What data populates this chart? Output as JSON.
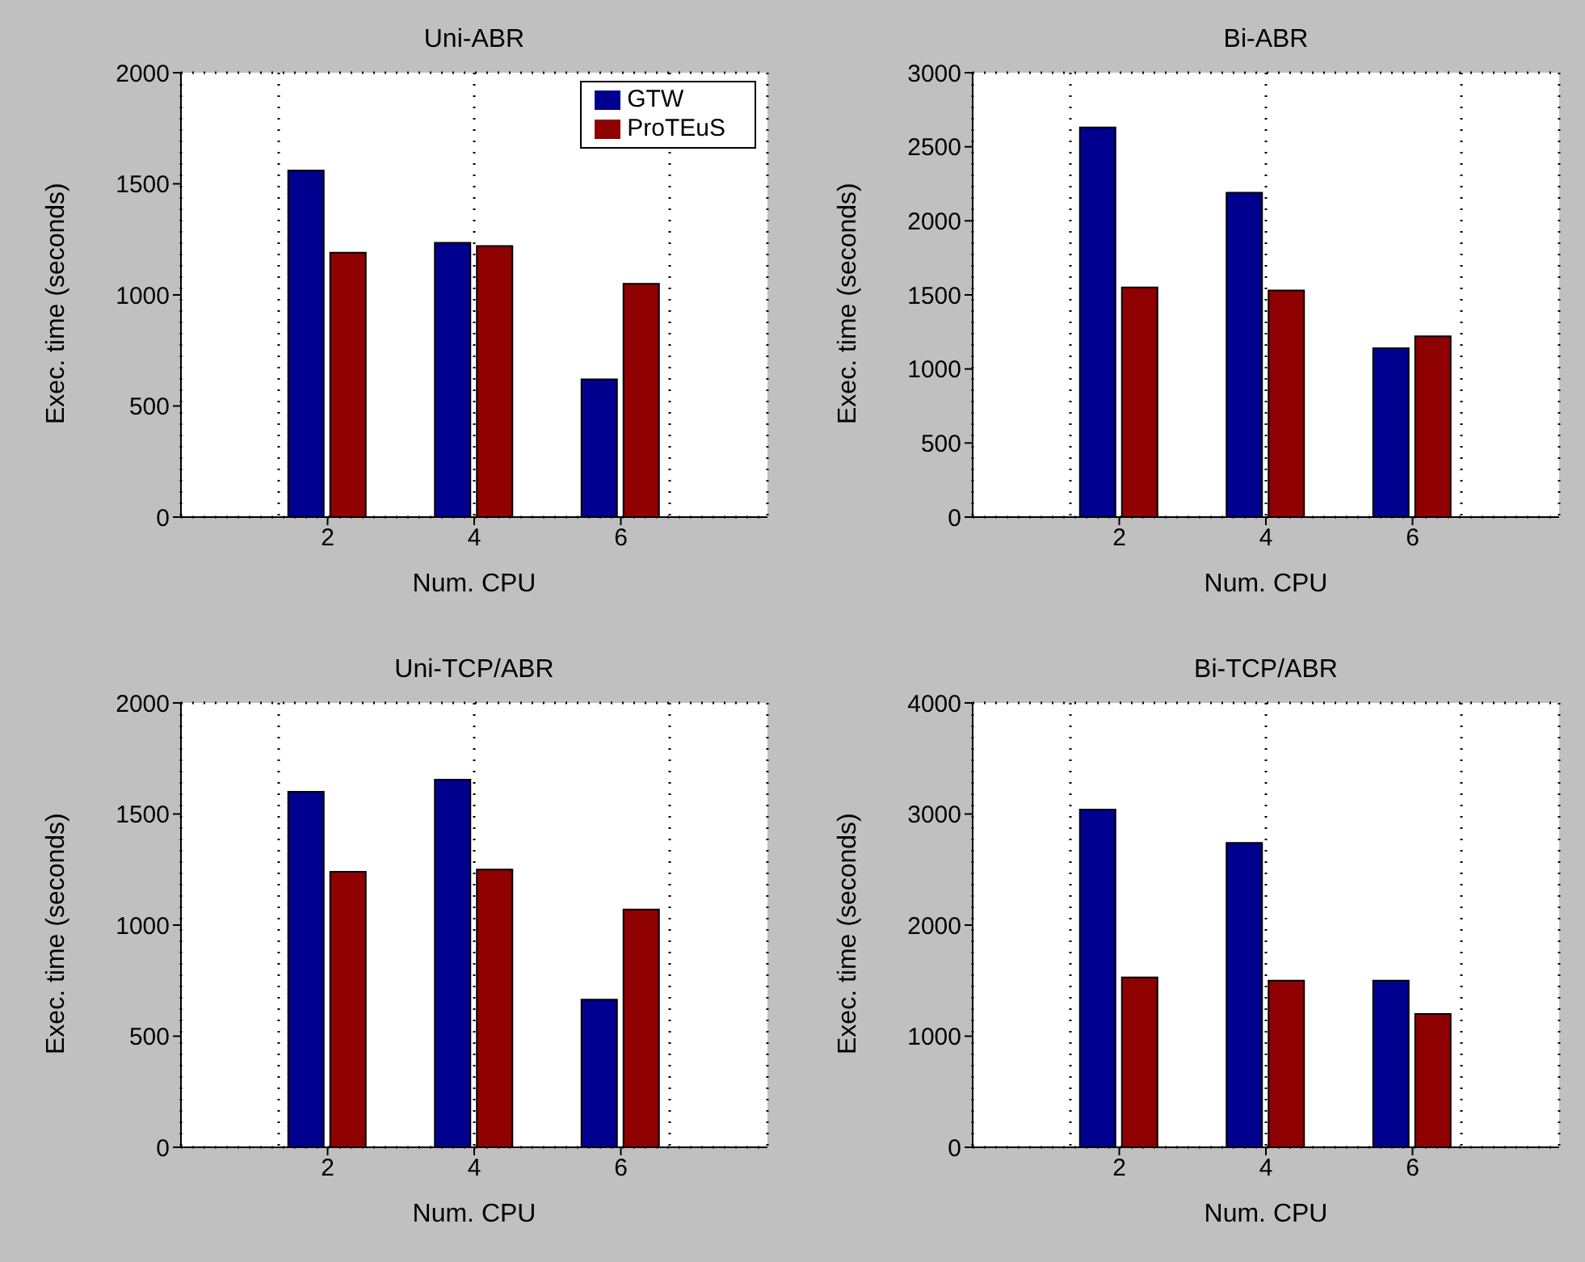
{
  "chart_data": [
    {
      "type": "bar",
      "title": "Uni-ABR",
      "xlabel": "Num. CPU",
      "ylabel": "Exec. time (seconds)",
      "x": [
        2,
        4,
        6
      ],
      "xlim": [
        0,
        8
      ],
      "xticks": [
        2,
        4,
        6
      ],
      "ylim": [
        0,
        2000
      ],
      "yticks": [
        0,
        500,
        1000,
        1500,
        2000
      ],
      "grid": true,
      "legend": "top right",
      "series": [
        {
          "name": "GTW",
          "color": "#00008f",
          "values": [
            1560,
            1235,
            620
          ]
        },
        {
          "name": "ProTEuS",
          "color": "#8f0000",
          "values": [
            1190,
            1220,
            1050
          ]
        }
      ]
    },
    {
      "type": "bar",
      "title": "Bi-ABR",
      "xlabel": "Num. CPU",
      "ylabel": "Exec. time (seconds)",
      "x": [
        2,
        4,
        6
      ],
      "xlim": [
        0,
        8
      ],
      "xticks": [
        2,
        4,
        6
      ],
      "ylim": [
        0,
        3000
      ],
      "yticks": [
        0,
        500,
        1000,
        1500,
        2000,
        2500,
        3000
      ],
      "grid": true,
      "series": [
        {
          "color": "#00008f",
          "values": [
            2630,
            2190,
            1140
          ]
        },
        {
          "color": "#8f0000",
          "values": [
            1550,
            1530,
            1220
          ]
        }
      ]
    },
    {
      "type": "bar",
      "title": "Uni-TCP/ABR",
      "xlabel": "Num. CPU",
      "ylabel": "Exec. time (seconds)",
      "x": [
        2,
        4,
        6
      ],
      "xlim": [
        0,
        8
      ],
      "xticks": [
        2,
        4,
        6
      ],
      "ylim": [
        0,
        2000
      ],
      "yticks": [
        0,
        500,
        1000,
        1500,
        2000
      ],
      "grid": true,
      "series": [
        {
          "color": "#00008f",
          "values": [
            1600,
            1655,
            665
          ]
        },
        {
          "color": "#8f0000",
          "values": [
            1240,
            1250,
            1070
          ]
        }
      ]
    },
    {
      "type": "bar",
      "title": "Bi-TCP/ABR",
      "xlabel": "Num. CPU",
      "ylabel": "Exec. time (seconds)",
      "x": [
        2,
        4,
        6
      ],
      "xlim": [
        0,
        8
      ],
      "xticks": [
        2,
        4,
        6
      ],
      "ylim": [
        0,
        4000
      ],
      "yticks": [
        0,
        1000,
        2000,
        3000,
        4000
      ],
      "grid": true,
      "series": [
        {
          "color": "#00008f",
          "values": [
            3040,
            2740,
            1500
          ]
        },
        {
          "color": "#8f0000",
          "values": [
            1530,
            1500,
            1200
          ]
        }
      ]
    }
  ]
}
